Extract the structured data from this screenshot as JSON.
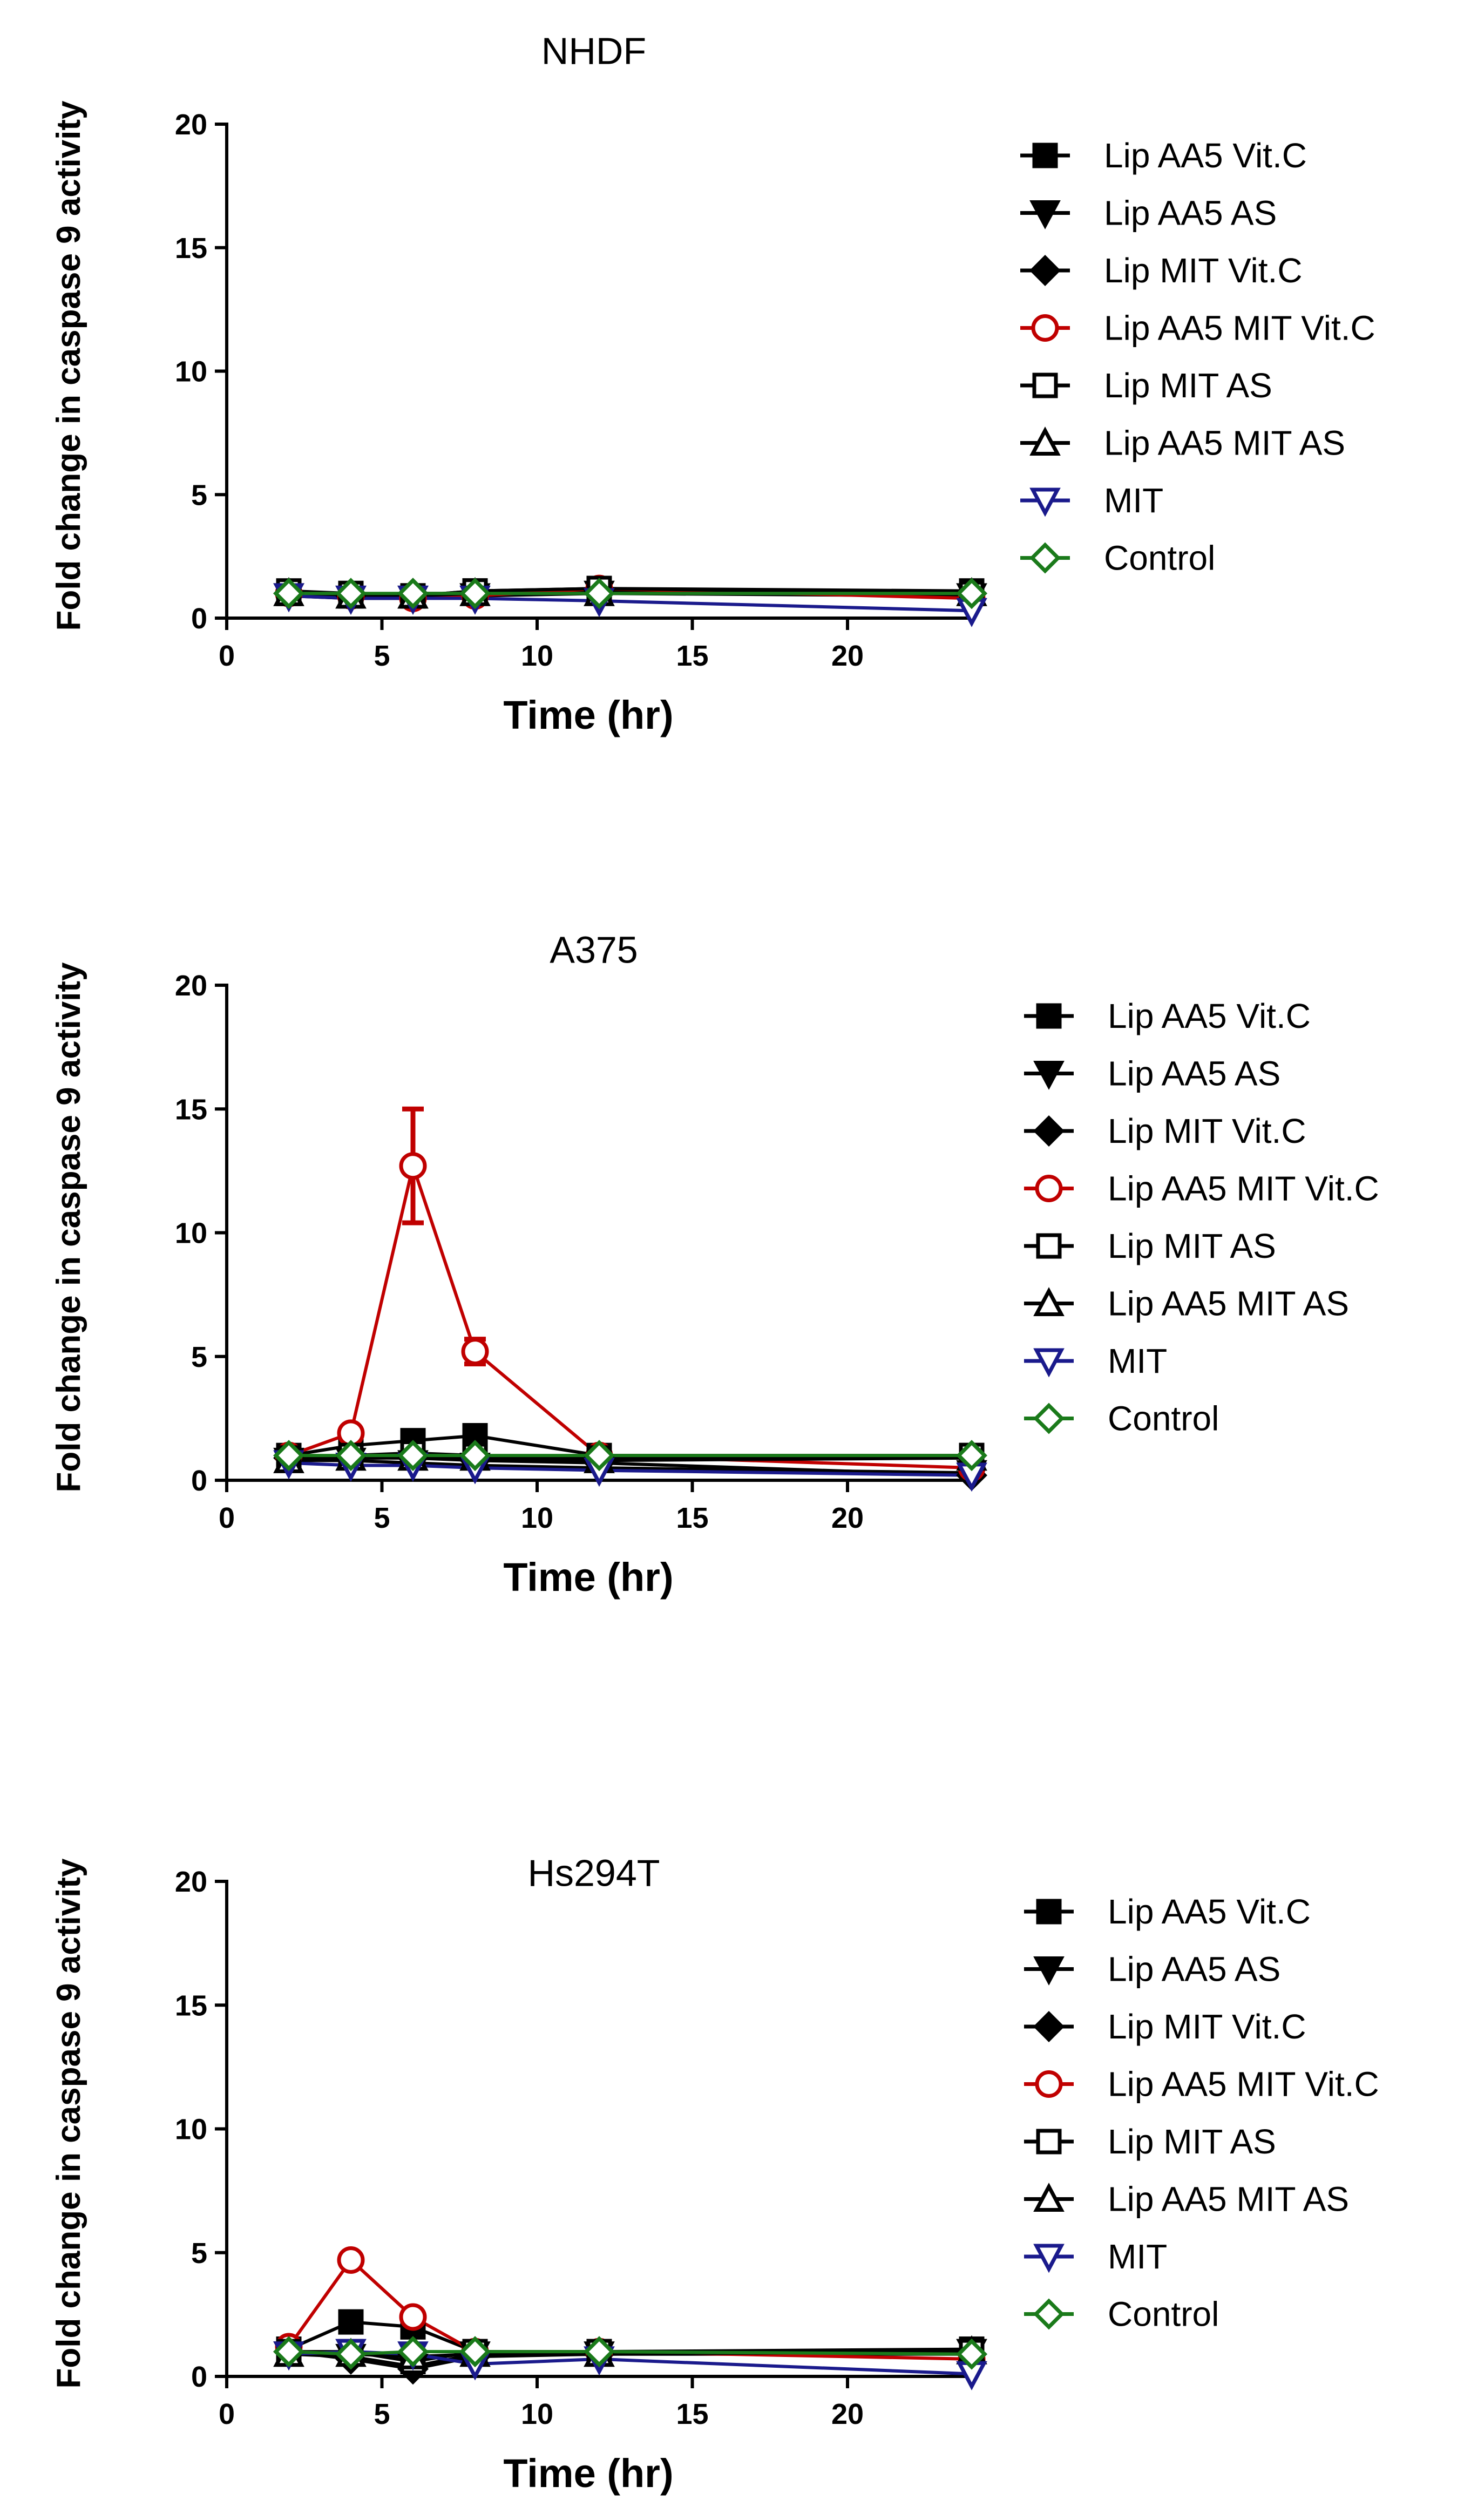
{
  "chart_data": [
    {
      "type": "line",
      "title": "NHDF",
      "xlabel": "Time (hr)",
      "ylabel": "Fold change in caspase 9 activity",
      "xlim": [
        0,
        24
      ],
      "ylim": [
        0,
        20
      ],
      "x_ticks": [
        0,
        5,
        10,
        15,
        20
      ],
      "y_ticks": [
        0,
        5,
        10,
        15,
        20
      ],
      "x": [
        2,
        4,
        6,
        8,
        12,
        24
      ],
      "grid": false,
      "legend": "right",
      "series": [
        {
          "name": "Lip AA5 Vit.C",
          "color": "#000000",
          "marker": "square-filled",
          "values": [
            1.0,
            0.9,
            0.9,
            1.1,
            1.2,
            1.1
          ]
        },
        {
          "name": "Lip AA5 AS",
          "color": "#000000",
          "marker": "triangle-down-filled",
          "values": [
            0.9,
            0.8,
            0.8,
            0.9,
            1.0,
            0.9
          ]
        },
        {
          "name": "Lip MIT Vit.C",
          "color": "#000000",
          "marker": "diamond-filled",
          "values": [
            1.0,
            0.9,
            1.0,
            1.0,
            1.1,
            1.0
          ]
        },
        {
          "name": "Lip AA5 MIT Vit.C",
          "color": "#c00000",
          "marker": "circle-open",
          "values": [
            1.0,
            0.9,
            0.8,
            0.9,
            1.2,
            0.8
          ]
        },
        {
          "name": "Lip MIT AS",
          "color": "#000000",
          "marker": "square-open",
          "values": [
            1.1,
            1.0,
            0.9,
            1.1,
            1.2,
            1.0
          ]
        },
        {
          "name": "Lip AA5 MIT AS",
          "color": "#000000",
          "marker": "triangle-up-open",
          "values": [
            1.0,
            0.9,
            0.9,
            1.0,
            1.0,
            1.0
          ]
        },
        {
          "name": "MIT",
          "color": "#1a1a8c",
          "marker": "triangle-down-open",
          "values": [
            0.9,
            0.8,
            0.8,
            0.8,
            0.7,
            0.3
          ]
        },
        {
          "name": "Control",
          "color": "#1a7a1a",
          "marker": "diamond-open",
          "values": [
            1.0,
            1.0,
            1.0,
            1.0,
            1.0,
            1.0
          ]
        }
      ]
    },
    {
      "type": "line",
      "title": "A375",
      "xlabel": "Time (hr)",
      "ylabel": "Fold change in caspase 9 activity",
      "xlim": [
        0,
        24
      ],
      "ylim": [
        0,
        20
      ],
      "x_ticks": [
        0,
        5,
        10,
        15,
        20
      ],
      "y_ticks": [
        0,
        5,
        10,
        15,
        20
      ],
      "x": [
        2,
        4,
        6,
        8,
        12,
        24
      ],
      "grid": false,
      "legend": "right",
      "series": [
        {
          "name": "Lip AA5 Vit.C",
          "color": "#000000",
          "marker": "square-filled",
          "values": [
            1.0,
            1.4,
            1.6,
            1.8,
            1.0,
            1.0
          ]
        },
        {
          "name": "Lip AA5 AS",
          "color": "#000000",
          "marker": "triangle-down-filled",
          "values": [
            0.8,
            0.8,
            0.7,
            0.6,
            0.5,
            0.3
          ]
        },
        {
          "name": "Lip MIT Vit.C",
          "color": "#000000",
          "marker": "diamond-filled",
          "values": [
            0.9,
            0.9,
            0.9,
            0.8,
            0.7,
            0.2
          ]
        },
        {
          "name": "Lip AA5 MIT Vit.C",
          "color": "#c00000",
          "marker": "circle-open",
          "values": [
            1.0,
            1.9,
            12.7,
            5.2,
            1.0,
            0.5
          ],
          "error": [
            0,
            0,
            2.3,
            0.5,
            0,
            0
          ]
        },
        {
          "name": "Lip MIT AS",
          "color": "#000000",
          "marker": "square-open",
          "values": [
            0.9,
            1.0,
            1.1,
            1.0,
            0.9,
            1.0
          ]
        },
        {
          "name": "Lip AA5 MIT AS",
          "color": "#000000",
          "marker": "triangle-up-open",
          "values": [
            0.8,
            0.9,
            0.9,
            0.9,
            0.8,
            0.9
          ]
        },
        {
          "name": "MIT",
          "color": "#1a1a8c",
          "marker": "triangle-down-open",
          "values": [
            0.7,
            0.6,
            0.6,
            0.5,
            0.4,
            0.2
          ]
        },
        {
          "name": "Control",
          "color": "#1a7a1a",
          "marker": "diamond-open",
          "values": [
            1.0,
            1.0,
            1.0,
            1.0,
            1.0,
            1.0
          ]
        }
      ]
    },
    {
      "type": "line",
      "title": "Hs294T",
      "xlabel": "Time (hr)",
      "ylabel": "Fold change in caspase 9 activity",
      "xlim": [
        0,
        24
      ],
      "ylim": [
        0,
        20
      ],
      "x_ticks": [
        0,
        5,
        10,
        15,
        20
      ],
      "y_ticks": [
        0,
        5,
        10,
        15,
        20
      ],
      "x": [
        2,
        4,
        6,
        8,
        12,
        24
      ],
      "grid": false,
      "legend": "right",
      "series": [
        {
          "name": "Lip AA5 Vit.C",
          "color": "#000000",
          "marker": "square-filled",
          "values": [
            1.1,
            2.2,
            2.0,
            1.0,
            1.0,
            1.1
          ]
        },
        {
          "name": "Lip AA5 AS",
          "color": "#000000",
          "marker": "triangle-down-filled",
          "values": [
            0.9,
            0.8,
            0.4,
            0.9,
            0.9,
            1.0
          ]
        },
        {
          "name": "Lip MIT Vit.C",
          "color": "#000000",
          "marker": "diamond-filled",
          "values": [
            1.0,
            0.7,
            0.3,
            0.8,
            0.9,
            0.9
          ]
        },
        {
          "name": "Lip AA5 MIT Vit.C",
          "color": "#c00000",
          "marker": "circle-open",
          "values": [
            1.2,
            4.7,
            2.4,
            1.0,
            1.0,
            0.7
          ]
        },
        {
          "name": "Lip MIT AS",
          "color": "#000000",
          "marker": "square-open",
          "values": [
            1.0,
            1.0,
            0.6,
            1.0,
            1.0,
            1.0
          ]
        },
        {
          "name": "Lip AA5 MIT AS",
          "color": "#000000",
          "marker": "triangle-up-open",
          "values": [
            0.9,
            0.9,
            0.8,
            0.9,
            0.9,
            1.0
          ]
        },
        {
          "name": "MIT",
          "color": "#1a1a8c",
          "marker": "triangle-down-open",
          "values": [
            0.9,
            1.0,
            0.9,
            0.5,
            0.7,
            0.1
          ]
        },
        {
          "name": "Control",
          "color": "#1a7a1a",
          "marker": "diamond-open",
          "values": [
            1.0,
            0.9,
            1.0,
            1.0,
            1.0,
            0.9
          ]
        }
      ]
    }
  ]
}
